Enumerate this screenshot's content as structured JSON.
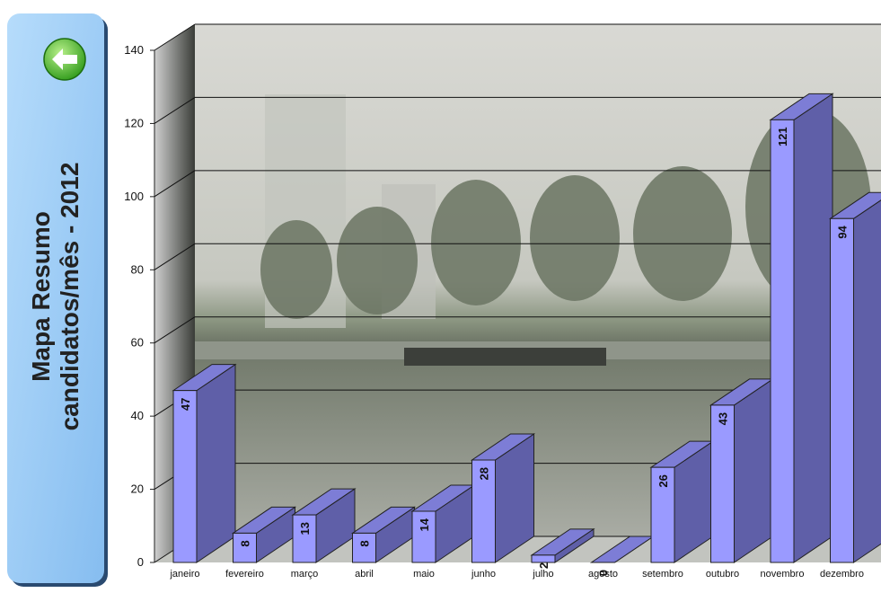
{
  "chart_data": {
    "type": "bar3d",
    "title": "Mapa Resumo",
    "subtitle": "candidatos/mês - 2012",
    "categories": [
      "janeiro",
      "fevereiro",
      "março",
      "abril",
      "maio",
      "junho",
      "julho",
      "agosto",
      "setembro",
      "outubro",
      "novembro",
      "dezembro"
    ],
    "values": [
      47,
      8,
      13,
      8,
      14,
      28,
      2,
      0,
      26,
      43,
      121,
      94
    ],
    "colors": {
      "front": "#9a9aff",
      "side": "#5f5fa8",
      "top": "#7d7dd6"
    },
    "ylim": [
      0,
      140
    ],
    "yticks": [
      0,
      20,
      40,
      60,
      80,
      100,
      120,
      140
    ],
    "grid": true
  }
}
